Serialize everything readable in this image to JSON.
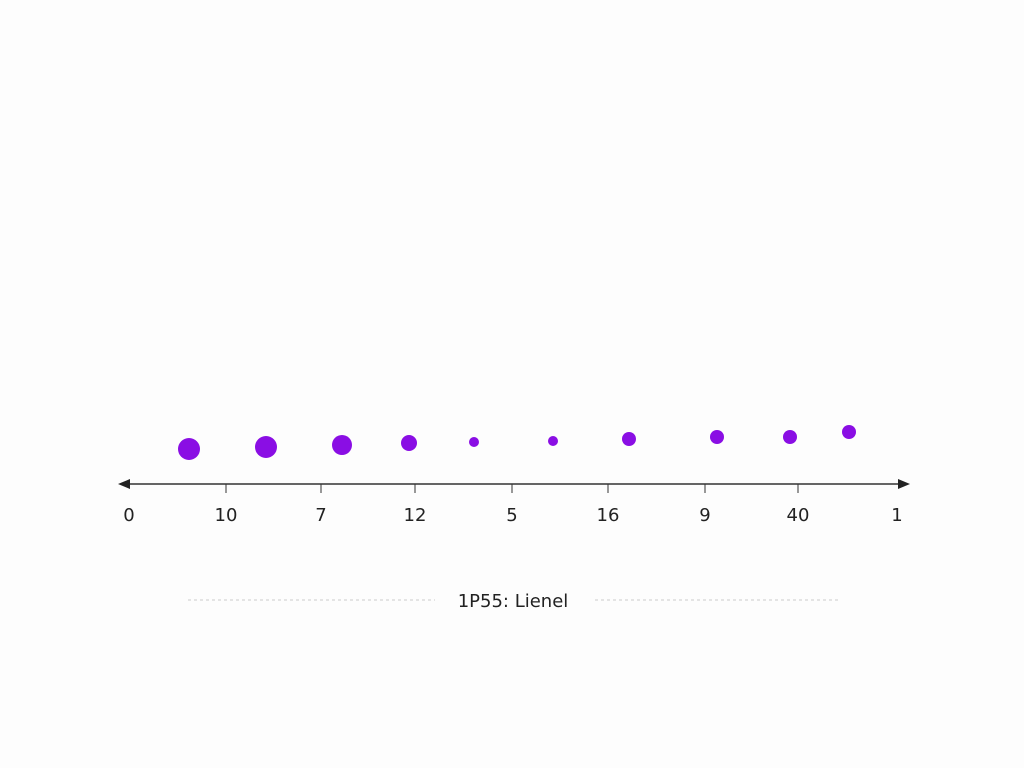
{
  "axis": {
    "labels": [
      "0",
      "10",
      "7",
      "12",
      "5",
      "16",
      "9",
      "40",
      "1"
    ]
  },
  "caption": "1P55: Lienel"
}
